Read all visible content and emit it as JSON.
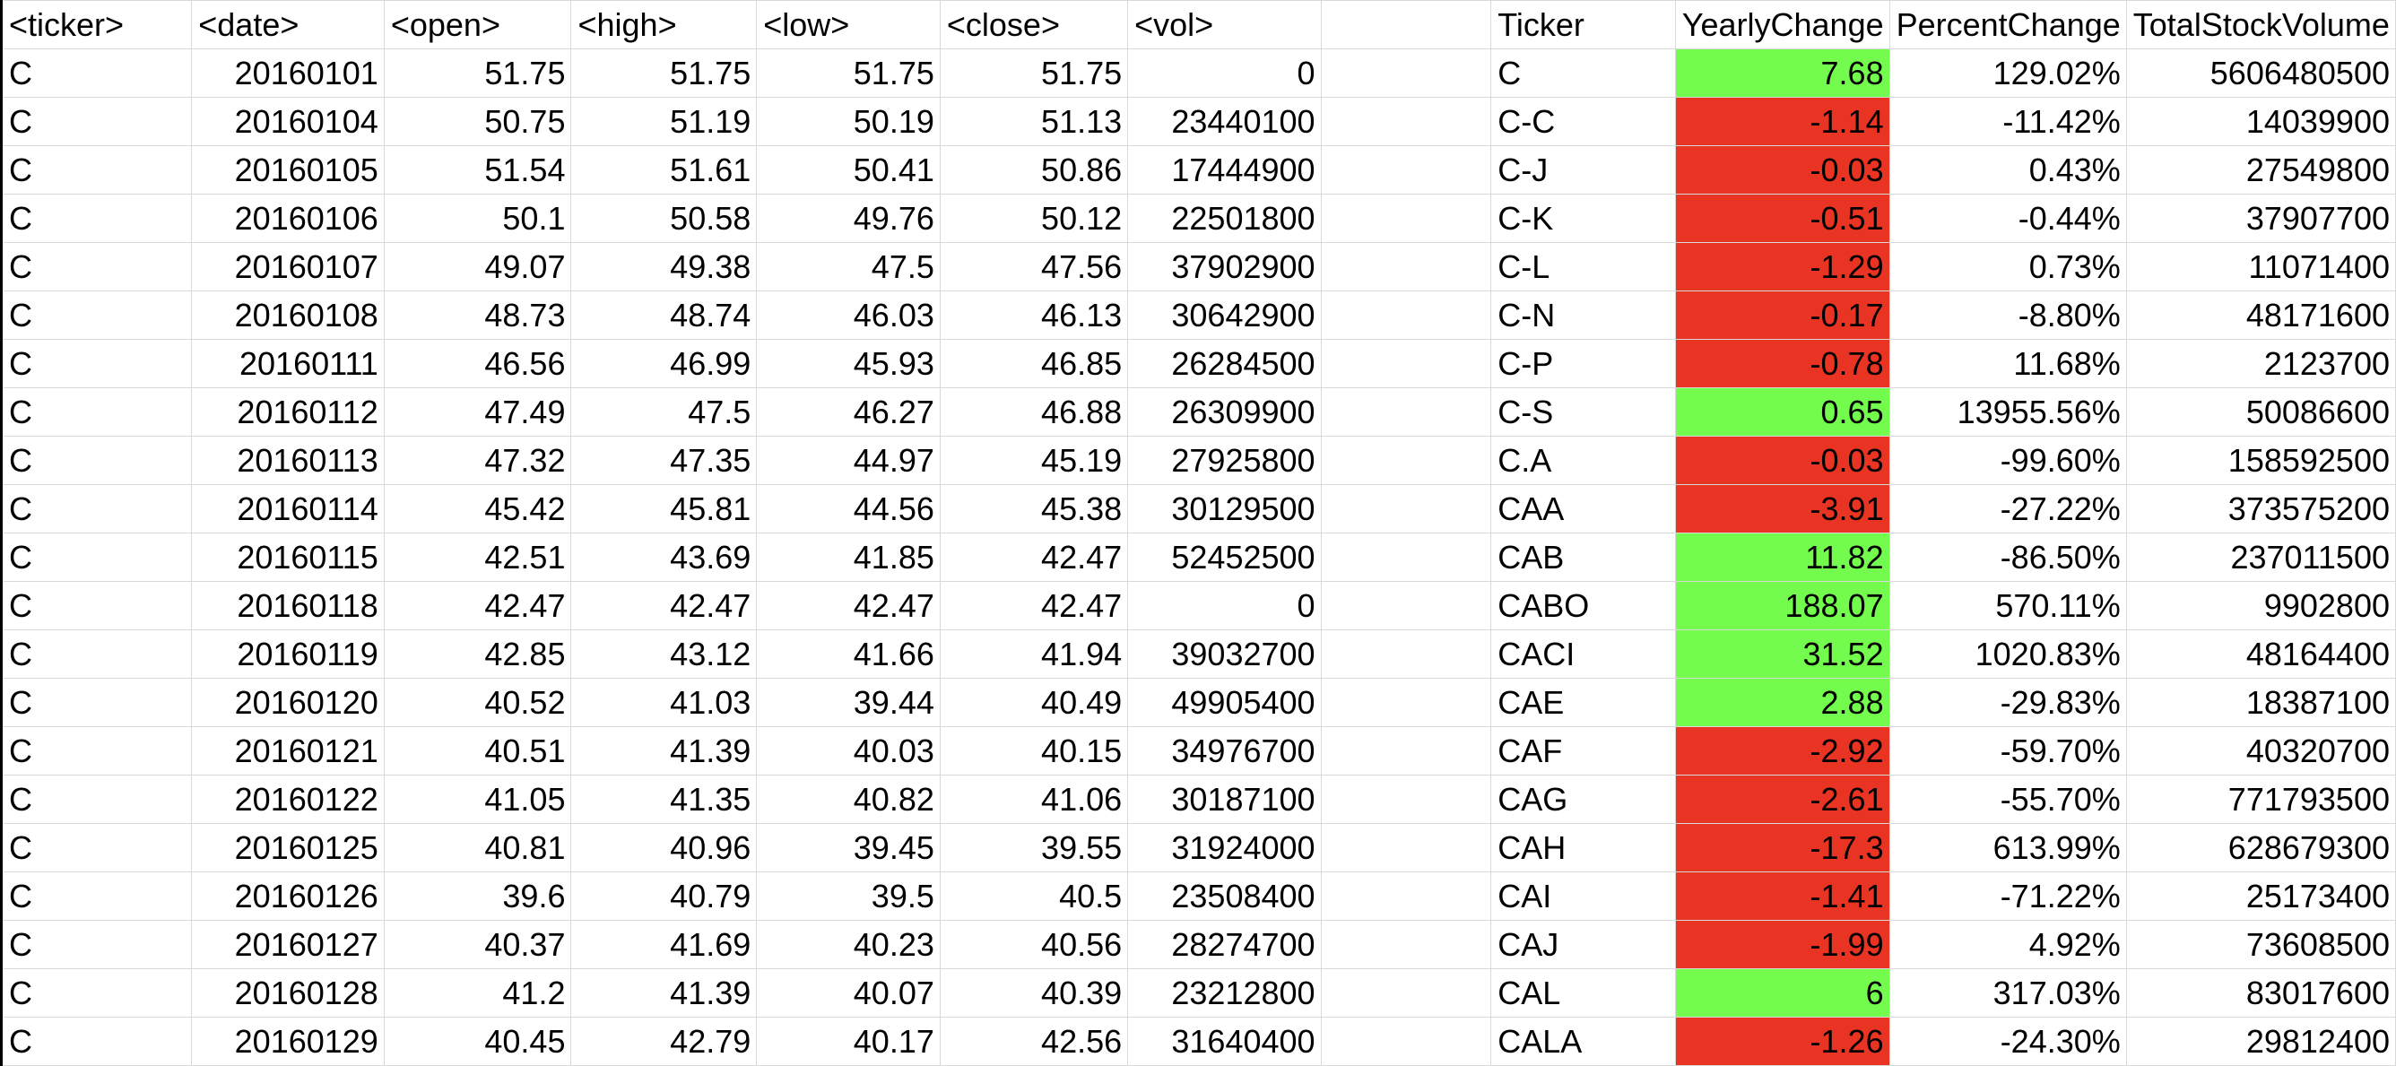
{
  "colors": {
    "positive": "#73fb4d",
    "negative": "#e93323",
    "grid": "#d9d9d9"
  },
  "headers": [
    "<ticker>",
    "<date>",
    "<open>",
    "<high>",
    "<low>",
    "<close>",
    "<vol>",
    "",
    "Ticker",
    "YearlyChange",
    "PercentChange",
    "TotalStockVolume"
  ],
  "rows": [
    {
      "ticker": "C",
      "date": "20160101",
      "open": "51.75",
      "high": "51.75",
      "low": "51.75",
      "close": "51.75",
      "vol": "0",
      "s_ticker": "C",
      "yearly_change": "7.68",
      "change_status": "positive",
      "percent_change": "129.02%",
      "total_volume": "5606480500"
    },
    {
      "ticker": "C",
      "date": "20160104",
      "open": "50.75",
      "high": "51.19",
      "low": "50.19",
      "close": "51.13",
      "vol": "23440100",
      "s_ticker": "C-C",
      "yearly_change": "-1.14",
      "change_status": "negative",
      "percent_change": "-11.42%",
      "total_volume": "14039900"
    },
    {
      "ticker": "C",
      "date": "20160105",
      "open": "51.54",
      "high": "51.61",
      "low": "50.41",
      "close": "50.86",
      "vol": "17444900",
      "s_ticker": "C-J",
      "yearly_change": "-0.03",
      "change_status": "negative",
      "percent_change": "0.43%",
      "total_volume": "27549800"
    },
    {
      "ticker": "C",
      "date": "20160106",
      "open": "50.1",
      "high": "50.58",
      "low": "49.76",
      "close": "50.12",
      "vol": "22501800",
      "s_ticker": "C-K",
      "yearly_change": "-0.51",
      "change_status": "negative",
      "percent_change": "-0.44%",
      "total_volume": "37907700"
    },
    {
      "ticker": "C",
      "date": "20160107",
      "open": "49.07",
      "high": "49.38",
      "low": "47.5",
      "close": "47.56",
      "vol": "37902900",
      "s_ticker": "C-L",
      "yearly_change": "-1.29",
      "change_status": "negative",
      "percent_change": "0.73%",
      "total_volume": "11071400"
    },
    {
      "ticker": "C",
      "date": "20160108",
      "open": "48.73",
      "high": "48.74",
      "low": "46.03",
      "close": "46.13",
      "vol": "30642900",
      "s_ticker": "C-N",
      "yearly_change": "-0.17",
      "change_status": "negative",
      "percent_change": "-8.80%",
      "total_volume": "48171600"
    },
    {
      "ticker": "C",
      "date": "20160111",
      "open": "46.56",
      "high": "46.99",
      "low": "45.93",
      "close": "46.85",
      "vol": "26284500",
      "s_ticker": "C-P",
      "yearly_change": "-0.78",
      "change_status": "negative",
      "percent_change": "11.68%",
      "total_volume": "2123700"
    },
    {
      "ticker": "C",
      "date": "20160112",
      "open": "47.49",
      "high": "47.5",
      "low": "46.27",
      "close": "46.88",
      "vol": "26309900",
      "s_ticker": "C-S",
      "yearly_change": "0.65",
      "change_status": "positive",
      "percent_change": "13955.56%",
      "total_volume": "50086600"
    },
    {
      "ticker": "C",
      "date": "20160113",
      "open": "47.32",
      "high": "47.35",
      "low": "44.97",
      "close": "45.19",
      "vol": "27925800",
      "s_ticker": "C.A",
      "yearly_change": "-0.03",
      "change_status": "negative",
      "percent_change": "-99.60%",
      "total_volume": "158592500"
    },
    {
      "ticker": "C",
      "date": "20160114",
      "open": "45.42",
      "high": "45.81",
      "low": "44.56",
      "close": "45.38",
      "vol": "30129500",
      "s_ticker": "CAA",
      "yearly_change": "-3.91",
      "change_status": "negative",
      "percent_change": "-27.22%",
      "total_volume": "373575200"
    },
    {
      "ticker": "C",
      "date": "20160115",
      "open": "42.51",
      "high": "43.69",
      "low": "41.85",
      "close": "42.47",
      "vol": "52452500",
      "s_ticker": "CAB",
      "yearly_change": "11.82",
      "change_status": "positive",
      "percent_change": "-86.50%",
      "total_volume": "237011500"
    },
    {
      "ticker": "C",
      "date": "20160118",
      "open": "42.47",
      "high": "42.47",
      "low": "42.47",
      "close": "42.47",
      "vol": "0",
      "s_ticker": "CABO",
      "yearly_change": "188.07",
      "change_status": "positive",
      "percent_change": "570.11%",
      "total_volume": "9902800"
    },
    {
      "ticker": "C",
      "date": "20160119",
      "open": "42.85",
      "high": "43.12",
      "low": "41.66",
      "close": "41.94",
      "vol": "39032700",
      "s_ticker": "CACI",
      "yearly_change": "31.52",
      "change_status": "positive",
      "percent_change": "1020.83%",
      "total_volume": "48164400"
    },
    {
      "ticker": "C",
      "date": "20160120",
      "open": "40.52",
      "high": "41.03",
      "low": "39.44",
      "close": "40.49",
      "vol": "49905400",
      "s_ticker": "CAE",
      "yearly_change": "2.88",
      "change_status": "positive",
      "percent_change": "-29.83%",
      "total_volume": "18387100"
    },
    {
      "ticker": "C",
      "date": "20160121",
      "open": "40.51",
      "high": "41.39",
      "low": "40.03",
      "close": "40.15",
      "vol": "34976700",
      "s_ticker": "CAF",
      "yearly_change": "-2.92",
      "change_status": "negative",
      "percent_change": "-59.70%",
      "total_volume": "40320700"
    },
    {
      "ticker": "C",
      "date": "20160122",
      "open": "41.05",
      "high": "41.35",
      "low": "40.82",
      "close": "41.06",
      "vol": "30187100",
      "s_ticker": "CAG",
      "yearly_change": "-2.61",
      "change_status": "negative",
      "percent_change": "-55.70%",
      "total_volume": "771793500"
    },
    {
      "ticker": "C",
      "date": "20160125",
      "open": "40.81",
      "high": "40.96",
      "low": "39.45",
      "close": "39.55",
      "vol": "31924000",
      "s_ticker": "CAH",
      "yearly_change": "-17.3",
      "change_status": "negative",
      "percent_change": "613.99%",
      "total_volume": "628679300"
    },
    {
      "ticker": "C",
      "date": "20160126",
      "open": "39.6",
      "high": "40.79",
      "low": "39.5",
      "close": "40.5",
      "vol": "23508400",
      "s_ticker": "CAI",
      "yearly_change": "-1.41",
      "change_status": "negative",
      "percent_change": "-71.22%",
      "total_volume": "25173400"
    },
    {
      "ticker": "C",
      "date": "20160127",
      "open": "40.37",
      "high": "41.69",
      "low": "40.23",
      "close": "40.56",
      "vol": "28274700",
      "s_ticker": "CAJ",
      "yearly_change": "-1.99",
      "change_status": "negative",
      "percent_change": "4.92%",
      "total_volume": "73608500"
    },
    {
      "ticker": "C",
      "date": "20160128",
      "open": "41.2",
      "high": "41.39",
      "low": "40.07",
      "close": "40.39",
      "vol": "23212800",
      "s_ticker": "CAL",
      "yearly_change": "6",
      "change_status": "positive",
      "percent_change": "317.03%",
      "total_volume": "83017600"
    },
    {
      "ticker": "C",
      "date": "20160129",
      "open": "40.45",
      "high": "42.79",
      "low": "40.17",
      "close": "42.56",
      "vol": "31640400",
      "s_ticker": "CALA",
      "yearly_change": "-1.26",
      "change_status": "negative",
      "percent_change": "-24.30%",
      "total_volume": "29812400"
    }
  ]
}
